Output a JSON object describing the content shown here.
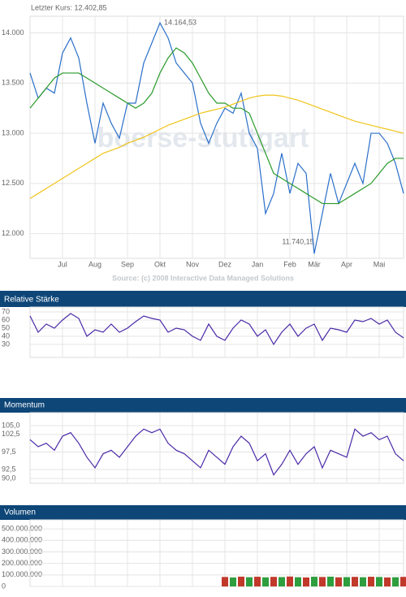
{
  "chart_data": [
    {
      "type": "line",
      "title": "Letzter Kurs: 12.402,85",
      "source": "Source: (c) 2008 Interactive Data Managed Solutions",
      "watermark": "boerse-stuttgart",
      "annotations": [
        {
          "text": "14.164,53"
        },
        {
          "text": "11.740,15"
        }
      ],
      "categories": [
        null,
        null,
        null,
        null,
        "Jul",
        null,
        null,
        null,
        "Aug",
        null,
        null,
        null,
        "Sep",
        null,
        null,
        null,
        "Okt",
        null,
        null,
        null,
        "Nov",
        null,
        null,
        null,
        "Dez",
        null,
        null,
        null,
        "Jan",
        null,
        null,
        null,
        "Feb",
        null,
        null,
        "Mär",
        null,
        null,
        null,
        "Apr",
        null,
        null,
        null,
        "Mai",
        null,
        null,
        null
      ],
      "ylim": [
        11754,
        14166
      ],
      "yticks": [
        {
          "value": 12000,
          "label": "12.000"
        },
        {
          "value": 12500,
          "label": "12.500"
        },
        {
          "value": 13000,
          "label": "13.000"
        },
        {
          "value": 13500,
          "label": "13.500"
        },
        {
          "value": 14000,
          "label": "14.000"
        }
      ],
      "grid": true,
      "series": [
        {
          "color": "#2a6fc9",
          "values": [
            13600,
            13350,
            13450,
            13400,
            13800,
            13950,
            13750,
            13300,
            12900,
            13300,
            13100,
            12950,
            13300,
            13300,
            13700,
            13900,
            14100,
            13950,
            13700,
            13600,
            13500,
            13100,
            12900,
            13100,
            13250,
            13200,
            13400,
            13000,
            12850,
            12200,
            12400,
            12800,
            12400,
            12700,
            12600,
            11800,
            12200,
            12600,
            12300,
            12500,
            12700,
            12500,
            13000,
            13000,
            12900,
            12700,
            12400
          ]
        },
        {
          "color": "#2a9a2a",
          "values": [
            13250,
            13350,
            13450,
            13550,
            13600,
            13600,
            13600,
            13550,
            13500,
            13450,
            13400,
            13350,
            13300,
            13250,
            13300,
            13400,
            13600,
            13750,
            13850,
            13800,
            13700,
            13550,
            13400,
            13300,
            13300,
            13250,
            13250,
            13200,
            13000,
            12800,
            12600,
            12550,
            12500,
            12450,
            12400,
            12350,
            12300,
            12300,
            12300,
            12350,
            12400,
            12450,
            12500,
            12600,
            12700,
            12750,
            12750
          ]
        },
        {
          "color": "#f0c419",
          "values": [
            12350,
            12400,
            12450,
            12500,
            12550,
            12600,
            12650,
            12700,
            12750,
            12800,
            12830,
            12860,
            12900,
            12930,
            12960,
            13000,
            13040,
            13080,
            13110,
            13140,
            13170,
            13200,
            13220,
            13240,
            13260,
            13290,
            13320,
            13350,
            13370,
            13380,
            13380,
            13370,
            13350,
            13330,
            13300,
            13270,
            13240,
            13210,
            13180,
            13150,
            13120,
            13100,
            13080,
            13060,
            13040,
            13020,
            13000
          ]
        }
      ]
    },
    {
      "type": "line",
      "title": "Relative Stärke",
      "ylim": [
        14,
        76
      ],
      "yticks": [
        30,
        40,
        50,
        60,
        70
      ],
      "series": [
        {
          "color": "#4b2aa8",
          "values": [
            65,
            45,
            55,
            50,
            60,
            68,
            62,
            40,
            48,
            45,
            55,
            45,
            50,
            58,
            65,
            62,
            60,
            45,
            50,
            48,
            40,
            35,
            55,
            40,
            35,
            50,
            60,
            55,
            40,
            48,
            30,
            45,
            55,
            40,
            50,
            55,
            35,
            50,
            48,
            45,
            60,
            58,
            62,
            55,
            60,
            45,
            38
          ]
        }
      ]
    },
    {
      "type": "line",
      "title": "Momentum",
      "ylim": [
        88.6,
        108.7
      ],
      "yticks": [
        {
          "value": 90,
          "label": "90,0"
        },
        {
          "value": 92.5,
          "label": "92,5"
        },
        {
          "value": 97.5,
          "label": "97,5"
        },
        {
          "value": 102.5,
          "label": "102,5"
        },
        {
          "value": 105,
          "label": "105,0"
        }
      ],
      "series": [
        {
          "color": "#4b2aa8",
          "values": [
            101,
            99,
            100,
            98,
            102,
            103,
            100,
            96,
            93,
            97,
            98,
            96,
            99,
            102,
            104,
            103,
            104,
            100,
            98,
            97,
            95,
            93,
            98,
            96,
            94,
            99,
            102,
            100,
            95,
            97,
            91,
            94,
            98,
            94,
            97,
            99,
            93,
            98,
            97,
            96,
            104,
            102,
            103,
            101,
            102,
            97,
            95
          ]
        }
      ]
    },
    {
      "type": "bar",
      "title": "Volumen",
      "ylim": [
        0,
        578000000
      ],
      "yticks": [
        0,
        {
          "value": 100000000,
          "label": "100.000.000"
        },
        {
          "value": 200000000,
          "label": "200.000.000"
        },
        {
          "value": 300000000,
          "label": "300.000.000"
        },
        {
          "value": 400000000,
          "label": "400.000.000"
        },
        {
          "value": 500000000,
          "label": "500.000.000"
        }
      ],
      "colors": [
        "#c0392b",
        "#2e9e3e"
      ],
      "values": [
        null,
        null,
        null,
        null,
        null,
        null,
        null,
        null,
        null,
        null,
        null,
        null,
        null,
        null,
        null,
        null,
        null,
        null,
        null,
        null,
        null,
        null,
        null,
        null,
        82000000,
        78000000,
        85000000,
        80000000,
        84000000,
        79000000,
        83000000,
        81000000,
        86000000,
        80000000,
        78000000,
        84000000,
        82000000,
        85000000,
        79000000,
        81000000,
        83000000,
        80000000,
        84000000,
        82000000,
        78000000,
        80000000,
        83000000
      ]
    }
  ]
}
